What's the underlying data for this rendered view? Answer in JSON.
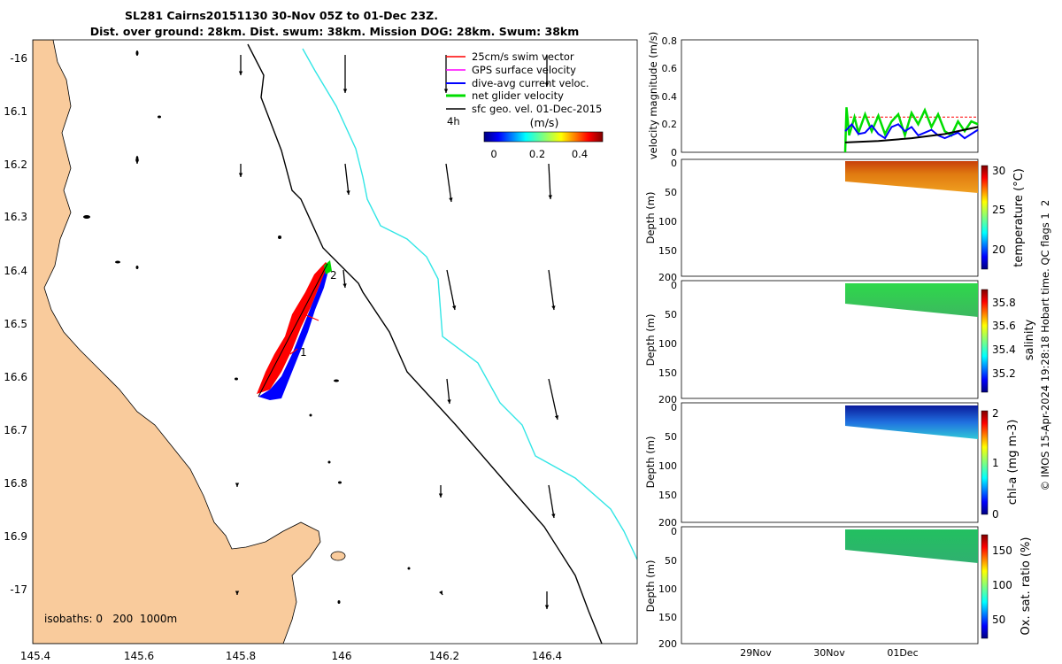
{
  "title": {
    "line1": "SL281 Cairns20151130 30-Nov 05Z to 01-Dec 23Z.",
    "line2": "Dist. over ground: 28km. Dist. swum: 38km. Mission DOG: 28km. Swum: 38km"
  },
  "map": {
    "x_ticks": [
      "145.4",
      "145.6",
      "145.8",
      "146",
      "146.2",
      "146.4"
    ],
    "y_ticks": [
      "-16",
      "16.1",
      "16.2",
      "16.3",
      "16.4",
      "16.5",
      "16.6",
      "16.7",
      "16.8",
      "16.9",
      "-17"
    ],
    "isobaths_label": "isobaths: 0   200  1000m",
    "marker1": "1",
    "marker2": "2",
    "colors": {
      "land": "#f9cb9c",
      "isobath200": "#000000",
      "isobath1000": "#33e6e6",
      "track_red": "#ff0000",
      "track_blue": "#0000ff",
      "track_green": "#00d800"
    },
    "legend": {
      "items": [
        "25cm/s swim vector",
        "GPS surface velocity",
        "dive-avg current veloc.",
        "net glider velocity",
        "sfc geo. vel. 01-Dec-2015"
      ],
      "colors": [
        "#ff0000",
        "#ff00ff",
        "#0000ff",
        "#00dd00",
        "#000000"
      ],
      "time_label": "4h",
      "colorbar_unit": "(m/s)",
      "colorbar_ticks": [
        "0",
        "0.2",
        "0.4"
      ]
    }
  },
  "chart_data": [
    {
      "type": "line",
      "ylabel": "velocity magnitude (m/s)",
      "ylim": [
        0,
        0.8
      ],
      "y_ticks": [
        "0",
        "0.2",
        "0.4",
        "0.6",
        "0.8"
      ],
      "series": [
        {
          "color": "#ff0000",
          "x": [
            0.0,
            0.1,
            0.2,
            0.3,
            0.4,
            0.5,
            0.6,
            0.7,
            0.8,
            0.9,
            1.0
          ],
          "values": [
            0.25,
            0.25,
            0.25,
            0.25,
            0.25,
            0.25,
            0.25,
            0.25,
            0.25,
            0.25,
            0.25
          ]
        },
        {
          "color": "#00dd00",
          "x": [
            0.0,
            0.01,
            0.03,
            0.07,
            0.1,
            0.15,
            0.2,
            0.25,
            0.3,
            0.35,
            0.4,
            0.45,
            0.5,
            0.55,
            0.6,
            0.65,
            0.7,
            0.75,
            0.8,
            0.85,
            0.9,
            0.95,
            1.0
          ],
          "values": [
            0.0,
            0.32,
            0.12,
            0.25,
            0.14,
            0.27,
            0.15,
            0.26,
            0.13,
            0.22,
            0.27,
            0.12,
            0.28,
            0.2,
            0.3,
            0.18,
            0.27,
            0.15,
            0.12,
            0.22,
            0.15,
            0.22,
            0.2
          ]
        },
        {
          "color": "#0000ff",
          "x": [
            0.0,
            0.05,
            0.1,
            0.15,
            0.2,
            0.25,
            0.3,
            0.35,
            0.4,
            0.45,
            0.5,
            0.55,
            0.6,
            0.65,
            0.7,
            0.75,
            0.8,
            0.85,
            0.9,
            0.95,
            1.0
          ],
          "values": [
            0.15,
            0.2,
            0.13,
            0.14,
            0.19,
            0.13,
            0.1,
            0.18,
            0.2,
            0.15,
            0.18,
            0.12,
            0.14,
            0.16,
            0.12,
            0.1,
            0.12,
            0.14,
            0.1,
            0.13,
            0.16
          ]
        },
        {
          "color": "#000000",
          "x": [
            0.0,
            0.25,
            0.5,
            0.75,
            1.0
          ],
          "values": [
            0.07,
            0.08,
            0.1,
            0.13,
            0.18
          ]
        }
      ]
    },
    {
      "type": "heatmap",
      "ylabel": "Depth (m)",
      "clabel": "temperature (°C)",
      "ylim": [
        200,
        0
      ],
      "y_ticks": [
        "0",
        "50",
        "100",
        "150",
        "200"
      ],
      "cticks": [
        "20",
        "25",
        "30"
      ]
    },
    {
      "type": "heatmap",
      "ylabel": "Depth (m)",
      "clabel": "salinity",
      "ylim": [
        200,
        0
      ],
      "y_ticks": [
        "0",
        "50",
        "100",
        "150",
        "200"
      ],
      "cticks": [
        "35.2",
        "35.4",
        "35.6",
        "35.8"
      ]
    },
    {
      "type": "heatmap",
      "ylabel": "Depth (m)",
      "clabel": "chl-a (mg m-3)",
      "ylim": [
        200,
        0
      ],
      "y_ticks": [
        "0",
        "50",
        "100",
        "150",
        "200"
      ],
      "cticks": [
        "0",
        "1",
        "2"
      ]
    },
    {
      "type": "heatmap",
      "ylabel": "Depth (m)",
      "clabel": "Ox. sat. ratio (%)",
      "ylim": [
        200,
        0
      ],
      "y_ticks": [
        "0",
        "50",
        "100",
        "150",
        "200"
      ],
      "cticks": [
        "50",
        "100",
        "150"
      ]
    }
  ],
  "time_axis": [
    "29Nov",
    "30Nov",
    "01Dec"
  ],
  "footer": "© IMOS 15-Apr-2024 19:28:18 Hobart time. QC flags 1  2"
}
